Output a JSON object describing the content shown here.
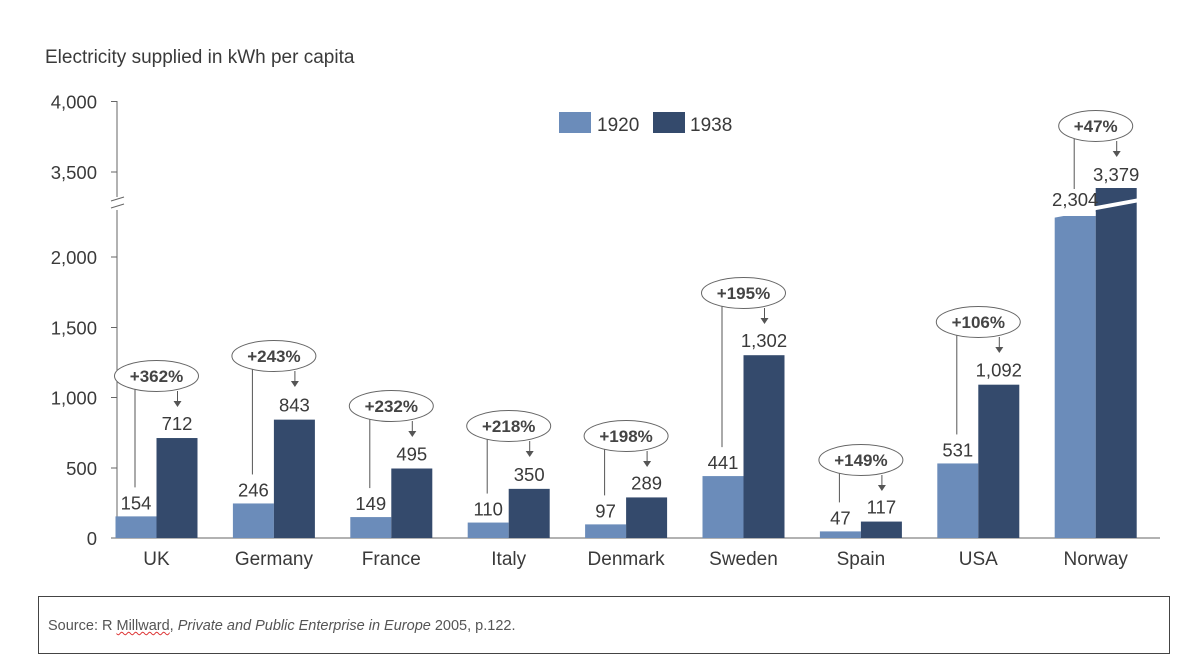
{
  "chart_data": {
    "type": "bar",
    "ylabel": "Electricity supplied in kWh per capita",
    "categories": [
      "UK",
      "Germany",
      "France",
      "Italy",
      "Denmark",
      "Sweden",
      "Spain",
      "USA",
      "Norway"
    ],
    "series": [
      {
        "name": "1920",
        "color": "#6b8cba",
        "values": [
          154,
          246,
          149,
          110,
          97,
          441,
          47,
          531,
          2304
        ],
        "labels": [
          "154",
          "246",
          "149",
          "110",
          "97",
          "441",
          "47",
          "531",
          "2,304"
        ]
      },
      {
        "name": "1938",
        "color": "#344a6c",
        "values": [
          712,
          843,
          495,
          350,
          289,
          1302,
          117,
          1092,
          3379
        ],
        "labels": [
          "712",
          "843",
          "495",
          "350",
          "289",
          "1,302",
          "117",
          "1,092",
          "3,379"
        ]
      }
    ],
    "changes": [
      "+362%",
      "+243%",
      "+232%",
      "+218%",
      "+198%",
      "+195%",
      "+149%",
      "+106%",
      "+47%"
    ],
    "yticks": [
      "0",
      "500",
      "1,000",
      "1,500",
      "2,000",
      "3,500",
      "4,000"
    ],
    "ylim": [
      0,
      4000
    ],
    "axis_break": "between 2,000 and 3,500",
    "legend_position": "top-center"
  },
  "source": {
    "prefix": "Source: R ",
    "author": "Millward",
    "sep": ", ",
    "title": "Private and Public Enterprise in Europe",
    "suffix": " 2005, p.122."
  }
}
